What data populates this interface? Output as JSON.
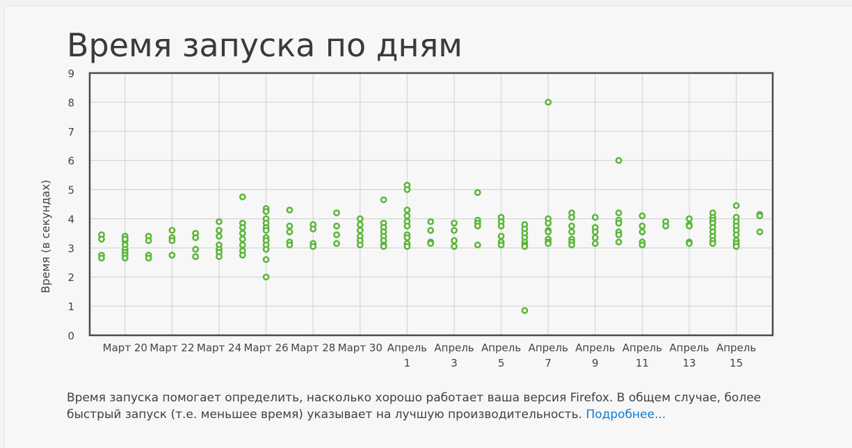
{
  "page": {
    "title": "Время запуска по дням",
    "description": "Время запуска помогает определить, насколько хорошо работает ваша версия Firefox. В общем случае, более быстрый запуск (т.е. меньшее время) указывает на лучшую производительность.",
    "more_link": "Подробнее..."
  },
  "colors": {
    "point": "#5cb53a",
    "grid": "#cfcfcf",
    "frame": "#4a4a4a",
    "link": "#0b7bd6"
  },
  "chart_data": {
    "type": "scatter",
    "title": "Время запуска по дням",
    "ylabel": "Время (в секундах)",
    "xlabel": "",
    "ylim": [
      0,
      9
    ],
    "yticks": [
      0,
      1,
      2,
      3,
      4,
      5,
      6,
      7,
      8,
      9
    ],
    "grid": true,
    "xtick_labels": [
      [
        "Март 20"
      ],
      [
        "Март 22"
      ],
      [
        "Март 24"
      ],
      [
        "Март 26"
      ],
      [
        "Март 28"
      ],
      [
        "Март 30"
      ],
      [
        "Апрель",
        "1"
      ],
      [
        "Апрель",
        "3"
      ],
      [
        "Апрель",
        "5"
      ],
      [
        "Апрель",
        "7"
      ],
      [
        "Апрель",
        "9"
      ],
      [
        "Апрель",
        "11"
      ],
      [
        "Апрель",
        "13"
      ],
      [
        "Апрель",
        "15"
      ]
    ],
    "x_dates": [
      "Март 19",
      "Март 20",
      "Март 21",
      "Март 22",
      "Март 23",
      "Март 24",
      "Март 25",
      "Март 26",
      "Март 27",
      "Март 28",
      "Март 29",
      "Март 30",
      "Март 31",
      "Апрель 1",
      "Апрель 2",
      "Апрель 3",
      "Апрель 4",
      "Апрель 5",
      "Апрель 6",
      "Апрель 7",
      "Апрель 8",
      "Апрель 9",
      "Апрель 10",
      "Апрель 11",
      "Апрель 12",
      "Апрель 13",
      "Апрель 14",
      "Апрель 15",
      "Апрель 16"
    ],
    "values_by_day": [
      [
        3.45,
        3.3,
        2.75,
        2.65
      ],
      [
        3.4,
        3.25,
        3.1,
        2.95,
        2.85,
        2.75,
        2.65,
        3.3
      ],
      [
        3.4,
        3.25,
        2.75,
        2.65
      ],
      [
        3.6,
        3.35,
        3.25,
        2.75
      ],
      [
        3.5,
        3.35,
        2.95,
        2.7
      ],
      [
        3.9,
        3.6,
        3.4,
        3.1,
        2.95,
        2.85,
        2.7
      ],
      [
        4.75,
        3.85,
        3.7,
        3.5,
        3.3,
        3.1,
        2.9,
        2.75
      ],
      [
        4.35,
        4.25,
        4.0,
        3.85,
        3.7,
        3.6,
        3.35,
        3.25,
        3.1,
        2.95,
        2.6,
        2.0
      ],
      [
        4.3,
        3.75,
        3.55,
        3.2,
        3.1
      ],
      [
        3.8,
        3.65,
        3.15,
        3.05
      ],
      [
        4.2,
        3.75,
        3.45,
        3.15
      ],
      [
        4.0,
        3.8,
        3.6,
        3.4,
        3.25,
        3.1
      ],
      [
        4.65,
        3.85,
        3.7,
        3.55,
        3.4,
        3.25,
        3.1,
        3.05
      ],
      [
        5.15,
        5.0,
        4.3,
        4.1,
        3.9,
        3.75,
        3.45,
        3.35,
        3.15,
        3.05
      ],
      [
        3.9,
        3.6,
        3.2,
        3.15
      ],
      [
        3.85,
        3.6,
        3.25,
        3.05
      ],
      [
        4.9,
        3.95,
        3.85,
        3.75,
        3.1
      ],
      [
        4.05,
        3.9,
        3.75,
        3.4,
        3.2,
        3.1
      ],
      [
        3.8,
        3.65,
        3.5,
        3.35,
        3.2,
        3.1,
        3.05,
        0.85
      ],
      [
        8.0,
        4.0,
        3.85,
        3.6,
        3.55,
        3.3,
        3.2,
        3.15
      ],
      [
        4.2,
        4.05,
        3.75,
        3.55,
        3.3,
        3.2,
        3.1
      ],
      [
        4.05,
        3.7,
        3.55,
        3.35,
        3.15
      ],
      [
        6.0,
        4.2,
        3.95,
        3.85,
        3.55,
        3.45,
        3.2
      ],
      [
        4.1,
        3.75,
        3.55,
        3.2,
        3.1
      ],
      [
        3.9,
        3.75
      ],
      [
        4.0,
        3.8,
        3.75,
        3.2,
        3.15
      ],
      [
        4.2,
        4.05,
        3.95,
        3.85,
        3.7,
        3.55,
        3.4,
        3.25,
        3.15
      ],
      [
        4.45,
        4.05,
        3.9,
        3.75,
        3.6,
        3.45,
        3.25,
        3.15,
        3.05
      ],
      [
        4.15,
        4.1,
        3.55
      ]
    ]
  }
}
